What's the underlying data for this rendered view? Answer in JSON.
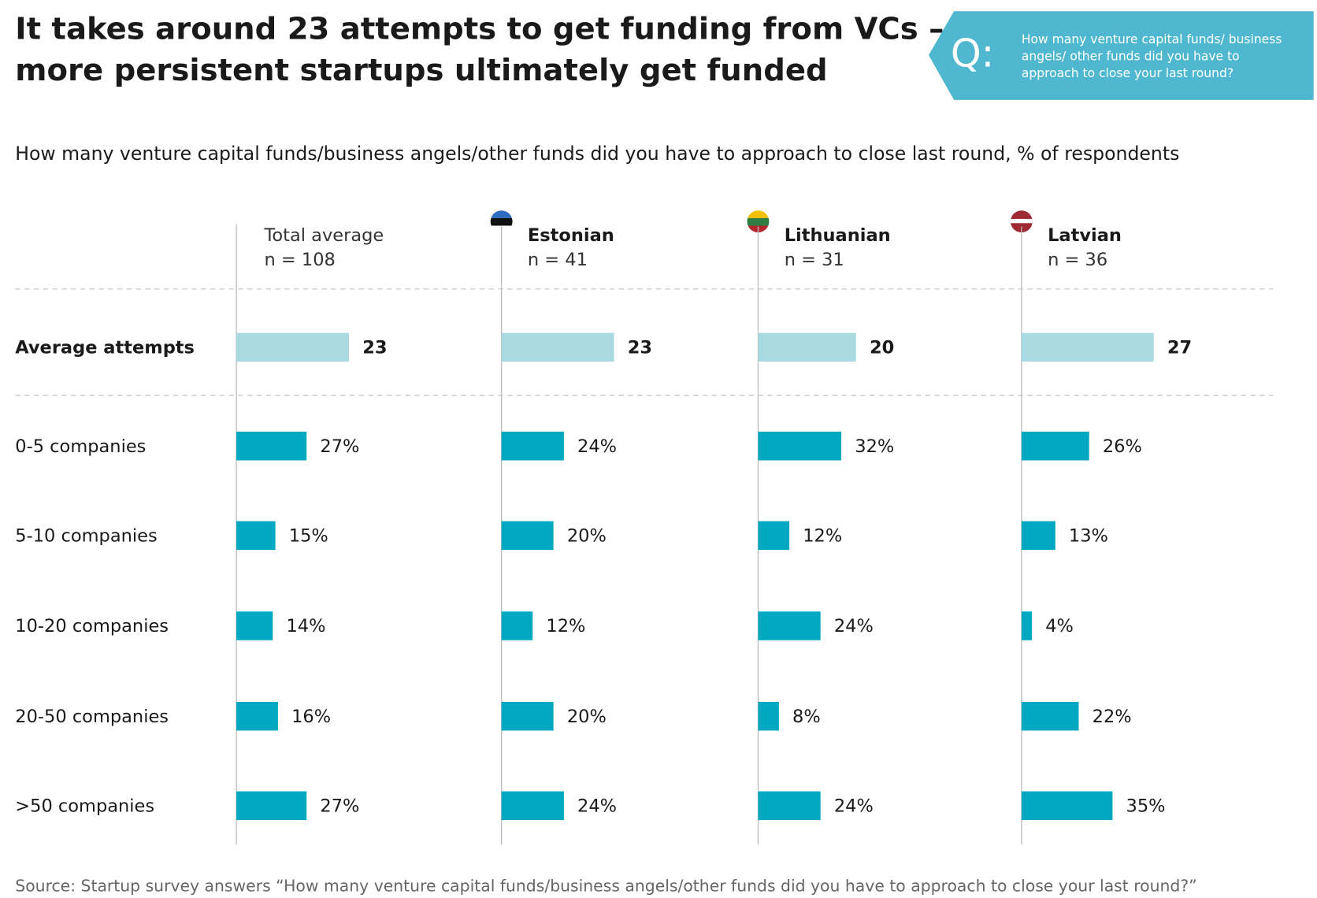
{
  "chart_data": {
    "type": "bar",
    "title": [
      "It takes around 23 attempts to get funding from VCs –",
      "more persistent startups ultimately get funded"
    ],
    "question_mark": "Q:",
    "question": [
      "How many venture capital funds/ business",
      "angels/ other funds did you have to",
      "approach to close your last round?"
    ],
    "subtitle": "How many venture capital funds/business angels/other funds did you have to approach to close last round, % of respondents",
    "average_label": "Average attempts",
    "categories": [
      "0-5 companies",
      "5-10 companies",
      "10-20 companies",
      "20-50 companies",
      ">50 companies"
    ],
    "average_color": "#a9d9e1",
    "color": "#00a9c1",
    "series": [
      {
        "name": "Total average",
        "n": "n = 108",
        "average": 23,
        "values": [
          27,
          15,
          14,
          16,
          27
        ],
        "value_labels": [
          "27%",
          "15%",
          "14%",
          "16%",
          "27%"
        ]
      },
      {
        "name": "Estonian",
        "n": "n = 41",
        "average": 23,
        "values": [
          24,
          20,
          12,
          20,
          24
        ],
        "value_labels": [
          "24%",
          "20%",
          "12%",
          "20%",
          "24%"
        ]
      },
      {
        "name": "Lithuanian",
        "n": "n = 31",
        "average": 20,
        "values": [
          32,
          12,
          24,
          8,
          24
        ],
        "value_labels": [
          "32%",
          "12%",
          "24%",
          "8%",
          "24%"
        ]
      },
      {
        "name": "Latvian",
        "n": "n = 36",
        "average": 27,
        "values": [
          26,
          13,
          4,
          22,
          35
        ],
        "value_labels": [
          "26%",
          "13%",
          "4%",
          "22%",
          "35%"
        ]
      }
    ],
    "source": "Source: Startup survey answers “How many venture capital funds/business angels/other funds did you have to approach to close your last round?”"
  }
}
